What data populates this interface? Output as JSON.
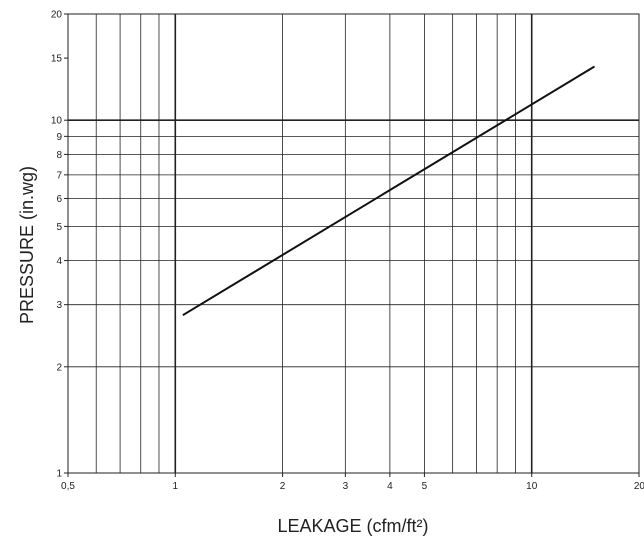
{
  "chart_data": {
    "type": "line",
    "xlabel": "LEAKAGE (cfm/ft²)",
    "ylabel": "PRESSURE (in.wg)",
    "xscale": "log",
    "yscale": "log",
    "xlim": [
      0.5,
      20
    ],
    "ylim": [
      1,
      20
    ],
    "grid": true,
    "x_ticks": [
      "0,5",
      "1",
      "2",
      "3",
      "4",
      "5",
      "10",
      "20"
    ],
    "y_ticks": [
      "1",
      "2",
      "3",
      "4",
      "5",
      "6",
      "7",
      "8",
      "9",
      "10",
      "15",
      "20"
    ],
    "series": [
      {
        "x": [
          1.05,
          15
        ],
        "y": [
          2.8,
          14.2
        ]
      }
    ]
  },
  "colors": {
    "line": "#111111",
    "grid": "#222222"
  }
}
